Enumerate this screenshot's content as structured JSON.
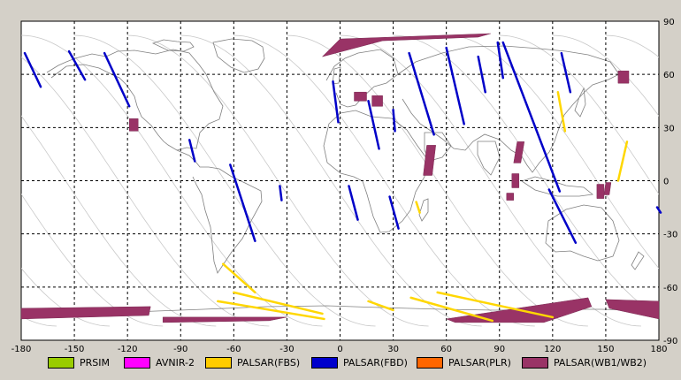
{
  "map": {
    "x_ticks": [
      "-180",
      "-150",
      "-120",
      "-90",
      "-60",
      "-30",
      "0",
      "30",
      "60",
      "90",
      "120",
      "150",
      "180"
    ],
    "y_ticks": [
      "90",
      "60",
      "30",
      "0",
      "-30",
      "-60",
      "-90"
    ],
    "colors": {
      "background": "#ffffff",
      "frame": "#d4d0c8",
      "coastline": "#808080",
      "orbit": "#c8c8c8",
      "fbs": "#ffd700",
      "fbd": "#0000c8",
      "wb": "#993366",
      "plr": "#cc3300"
    }
  },
  "legend": [
    {
      "label": "PRSIM",
      "color": "#99cc00"
    },
    {
      "label": "AVNIR-2",
      "color": "#ff00ff"
    },
    {
      "label": "PALSAR(FBS)",
      "color": "#ffcc00"
    },
    {
      "label": "PALSAR(FBD)",
      "color": "#0000cc"
    },
    {
      "label": "PALSAR(PLR)",
      "color": "#ff6600"
    },
    {
      "label": "PALSAR(WB1/WB2)",
      "color": "#993366"
    }
  ],
  "chart_data": {
    "type": "map",
    "xlim": [
      -180,
      180
    ],
    "ylim": [
      -90,
      90
    ],
    "grid": true,
    "fbd_strips": [
      [
        [
          -178,
          72
        ],
        [
          -169,
          53
        ]
      ],
      [
        [
          -153,
          73
        ],
        [
          -144,
          57
        ]
      ],
      [
        [
          -133,
          72
        ],
        [
          -119,
          42
        ]
      ],
      [
        [
          -85,
          23
        ],
        [
          -82,
          11
        ]
      ],
      [
        [
          -62,
          9
        ],
        [
          -48,
          -34
        ]
      ],
      [
        [
          -34,
          -3
        ],
        [
          -33,
          -11
        ]
      ],
      [
        [
          -4,
          56
        ],
        [
          -1,
          33
        ]
      ],
      [
        [
          5,
          -3
        ],
        [
          10,
          -22
        ]
      ],
      [
        [
          16,
          45
        ],
        [
          22,
          18
        ]
      ],
      [
        [
          30,
          40
        ],
        [
          31,
          28
        ]
      ],
      [
        [
          28,
          -9
        ],
        [
          33,
          -27
        ]
      ],
      [
        [
          39,
          72
        ],
        [
          53,
          26
        ]
      ],
      [
        [
          60,
          75
        ],
        [
          70,
          32
        ]
      ],
      [
        [
          78,
          70
        ],
        [
          82,
          50
        ]
      ],
      [
        [
          89,
          78
        ],
        [
          92,
          58
        ]
      ],
      [
        [
          92,
          78
        ],
        [
          124,
          -6
        ]
      ],
      [
        [
          125,
          72
        ],
        [
          130,
          50
        ]
      ],
      [
        [
          118,
          -5
        ],
        [
          133,
          -35
        ]
      ],
      [
        [
          179,
          -15
        ],
        [
          181,
          -18
        ]
      ]
    ],
    "fbs_strips": [
      [
        [
          -66,
          -47
        ],
        [
          -48,
          -63
        ]
      ],
      [
        [
          -69,
          -68
        ],
        [
          -9,
          -78
        ]
      ],
      [
        [
          -60,
          -63
        ],
        [
          -10,
          -75
        ]
      ],
      [
        [
          16,
          -68
        ],
        [
          30,
          -73
        ]
      ],
      [
        [
          40,
          -66
        ],
        [
          86,
          -79
        ]
      ],
      [
        [
          55,
          -63
        ],
        [
          120,
          -77
        ]
      ],
      [
        [
          123,
          50
        ],
        [
          127,
          28
        ]
      ],
      [
        [
          162,
          22
        ],
        [
          157,
          0
        ]
      ],
      [
        [
          43,
          -12
        ],
        [
          45,
          -18
        ]
      ]
    ],
    "wb_polygons": [
      [
        [
          0,
          80
        ],
        [
          85,
          83
        ],
        [
          78,
          81
        ],
        [
          24,
          79
        ],
        [
          -10,
          70
        ]
      ],
      [
        [
          -180,
          -72
        ],
        [
          -107,
          -71
        ],
        [
          -108,
          -76
        ],
        [
          -180,
          -78
        ]
      ],
      [
        [
          -100,
          -77
        ],
        [
          -30,
          -77
        ],
        [
          -40,
          -79
        ],
        [
          -100,
          -80
        ]
      ],
      [
        [
          60,
          -78
        ],
        [
          140,
          -66
        ],
        [
          142,
          -71
        ],
        [
          115,
          -80
        ],
        [
          65,
          -80
        ]
      ],
      [
        [
          150,
          -67
        ],
        [
          180,
          -68
        ],
        [
          180,
          -78
        ],
        [
          152,
          -72
        ]
      ],
      [
        [
          8,
          50
        ],
        [
          15,
          50
        ],
        [
          15,
          45
        ],
        [
          8,
          45
        ]
      ],
      [
        [
          18,
          48
        ],
        [
          24,
          48
        ],
        [
          24,
          42
        ],
        [
          18,
          42
        ]
      ],
      [
        [
          49,
          20
        ],
        [
          54,
          20
        ],
        [
          52,
          3
        ],
        [
          47,
          3
        ]
      ],
      [
        [
          100,
          22
        ],
        [
          104,
          22
        ],
        [
          102,
          10
        ],
        [
          98,
          10
        ]
      ],
      [
        [
          97,
          4
        ],
        [
          101,
          4
        ],
        [
          101,
          -4
        ],
        [
          97,
          -4
        ]
      ],
      [
        [
          94,
          -7
        ],
        [
          98,
          -7
        ],
        [
          98,
          -11
        ],
        [
          94,
          -11
        ]
      ],
      [
        [
          145,
          -2
        ],
        [
          149,
          -2
        ],
        [
          149,
          -10
        ],
        [
          145,
          -10
        ]
      ],
      [
        [
          150,
          -1
        ],
        [
          153,
          -1
        ],
        [
          152,
          -8
        ],
        [
          149,
          -8
        ]
      ],
      [
        [
          157,
          62
        ],
        [
          163,
          62
        ],
        [
          163,
          55
        ],
        [
          157,
          55
        ]
      ],
      [
        [
          -119,
          35
        ],
        [
          -114,
          35
        ],
        [
          -114,
          28
        ],
        [
          -119,
          28
        ]
      ]
    ]
  }
}
